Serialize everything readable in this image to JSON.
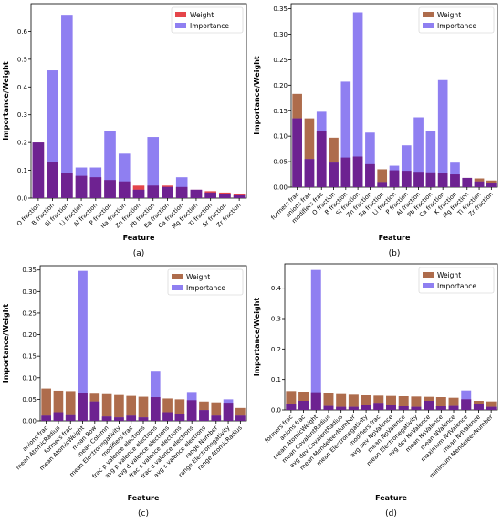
{
  "legend": {
    "weight": "Weight",
    "importance": "Importance"
  },
  "colors": {
    "weight_a": "#e0242a",
    "weight_b": "#a0522d",
    "importance": "#7b68ee",
    "overlap": "#6a1b8a"
  },
  "chart_data": [
    {
      "type": "bar",
      "panel_label": "(a)",
      "xlabel": "Feature",
      "ylabel": "Importance/Weight",
      "ylim": [
        0,
        0.7
      ],
      "yticks": [
        "0.0",
        "0.1",
        "0.2",
        "0.3",
        "0.4",
        "0.5",
        "0.6"
      ],
      "legend_position": "top-right",
      "categories": [
        "O fraction",
        "B fraction",
        "Si fraction",
        "Li fraction",
        "Al fraction",
        "P fraction",
        "Na fraction",
        "Zn fraction",
        "Pb fraction",
        "Ba fraction",
        "Ca fraction",
        "Mg fraction",
        "Ti fraction",
        "Sr fraction",
        "Zr fraction"
      ],
      "series": [
        {
          "name": "Weight",
          "values": [
            0.2,
            0.13,
            0.09,
            0.08,
            0.075,
            0.065,
            0.06,
            0.045,
            0.045,
            0.045,
            0.04,
            0.03,
            0.025,
            0.02,
            0.015
          ]
        },
        {
          "name": "Importance",
          "values": [
            0.2,
            0.46,
            0.66,
            0.11,
            0.11,
            0.24,
            0.16,
            0.03,
            0.22,
            0.04,
            0.075,
            0.03,
            0.02,
            0.015,
            0.01
          ]
        }
      ]
    },
    {
      "type": "bar",
      "panel_label": "(b)",
      "xlabel": "Feature",
      "ylabel": "Importance/Weight",
      "ylim": [
        0,
        0.36
      ],
      "yticks": [
        "0.00",
        "0.05",
        "0.10",
        "0.15",
        "0.20",
        "0.25",
        "0.30",
        "0.35"
      ],
      "legend_position": "top-right",
      "categories": [
        "formers frac",
        "anions frac",
        "modifiers frac",
        "O fraction",
        "B fraction",
        "Si fraction",
        "Zn fraction",
        "Ba fraction",
        "Li fraction",
        "P fraction",
        "Al fraction",
        "Pb fraction",
        "Ca fraction",
        "K fraction",
        "Mg fraction",
        "Ti fraction",
        "Zr fraction"
      ],
      "series": [
        {
          "name": "Weight",
          "values": [
            0.183,
            0.135,
            0.11,
            0.097,
            0.058,
            0.06,
            0.045,
            0.035,
            0.033,
            0.032,
            0.03,
            0.029,
            0.028,
            0.025,
            0.018,
            0.017,
            0.013
          ]
        },
        {
          "name": "Importance",
          "values": [
            0.135,
            0.055,
            0.148,
            0.048,
            0.207,
            0.343,
            0.107,
            0.01,
            0.042,
            0.082,
            0.137,
            0.11,
            0.21,
            0.048,
            0.018,
            0.011,
            0.008
          ]
        }
      ]
    },
    {
      "type": "bar",
      "panel_label": "(c)",
      "xlabel": "Feature",
      "ylabel": "Importance/Weight",
      "ylim": [
        0,
        0.36
      ],
      "yticks": [
        "0.00",
        "0.05",
        "0.10",
        "0.15",
        "0.20",
        "0.25",
        "0.30",
        "0.35"
      ],
      "legend_position": "top-right",
      "categories": [
        "anions frac",
        "mean AtomicRadius",
        "formers frac",
        "mean AtomicWeight",
        "mean Row",
        "mean Column",
        "mean Electronegativity",
        "modifiers frac",
        "frac p valence electrons",
        "avg p valence electrons",
        "avg d valence electrons",
        "frac s valence electrons",
        "frac d valence electrons",
        "avg s valence electrons",
        "range Number",
        "range Electronegativity",
        "range AtomicRadius"
      ],
      "series": [
        {
          "name": "Weight",
          "values": [
            0.075,
            0.07,
            0.069,
            0.065,
            0.063,
            0.062,
            0.06,
            0.058,
            0.056,
            0.055,
            0.052,
            0.05,
            0.048,
            0.045,
            0.043,
            0.04,
            0.03
          ]
        },
        {
          "name": "Importance",
          "values": [
            0.012,
            0.02,
            0.013,
            0.348,
            0.045,
            0.01,
            0.008,
            0.012,
            0.008,
            0.116,
            0.02,
            0.015,
            0.067,
            0.025,
            0.012,
            0.05,
            0.012
          ]
        }
      ]
    },
    {
      "type": "bar",
      "panel_label": "(d)",
      "xlabel": "Feature",
      "ylabel": "Importance/Weight",
      "ylim": [
        0,
        0.48
      ],
      "yticks": [
        "0.0",
        "0.1",
        "0.2",
        "0.3",
        "0.4"
      ],
      "legend_position": "top-right",
      "categories": [
        "formers frac",
        "anions frac",
        "mean AtomicWeight",
        "mean CovalentRadius",
        "avg dev CovalentRadius",
        "mean MendeleevNumber",
        "mean Electronegativity",
        "modifiers frac",
        "avg dev NpValence",
        "mean NpValence",
        "mean Electronegativity",
        "avg dev NsValence",
        "mean NsValence",
        "mean NValence",
        "maximum NdValence",
        "mean NdValence",
        "minimum MendeleevNumber"
      ],
      "series": [
        {
          "name": "Weight",
          "values": [
            0.062,
            0.06,
            0.058,
            0.055,
            0.052,
            0.05,
            0.048,
            0.047,
            0.046,
            0.045,
            0.044,
            0.043,
            0.042,
            0.04,
            0.035,
            0.03,
            0.028
          ]
        },
        {
          "name": "Importance",
          "values": [
            0.018,
            0.03,
            0.46,
            0.013,
            0.01,
            0.01,
            0.015,
            0.02,
            0.015,
            0.012,
            0.01,
            0.03,
            0.012,
            0.013,
            0.064,
            0.018,
            0.01
          ]
        }
      ]
    }
  ]
}
